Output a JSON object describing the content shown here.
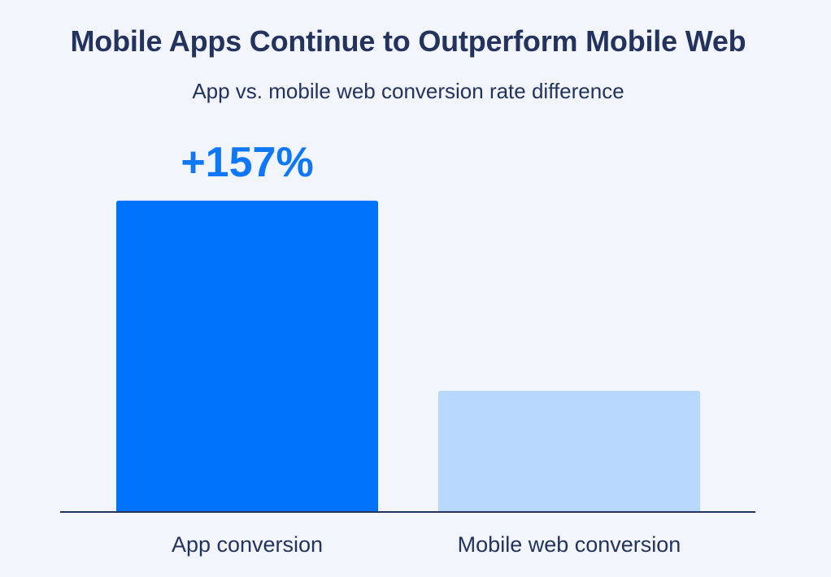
{
  "chart_data": {
    "type": "bar",
    "title": "Mobile Apps Continue to Outperform Mobile Web",
    "subtitle": "App vs. mobile web conversion rate difference",
    "categories": [
      "App conversion",
      "Mobile web conversion"
    ],
    "values": [
      257,
      100
    ],
    "data_labels": [
      "+157%",
      ""
    ],
    "ylim": [
      0,
      275
    ],
    "grid": false,
    "colors": {
      "App conversion": "#0073fd",
      "Mobile web conversion": "#b8d7fc",
      "data_label": "#0e78f8",
      "baseline": "#24335e",
      "text": "#24335e",
      "background": "#f2f5fc"
    }
  }
}
